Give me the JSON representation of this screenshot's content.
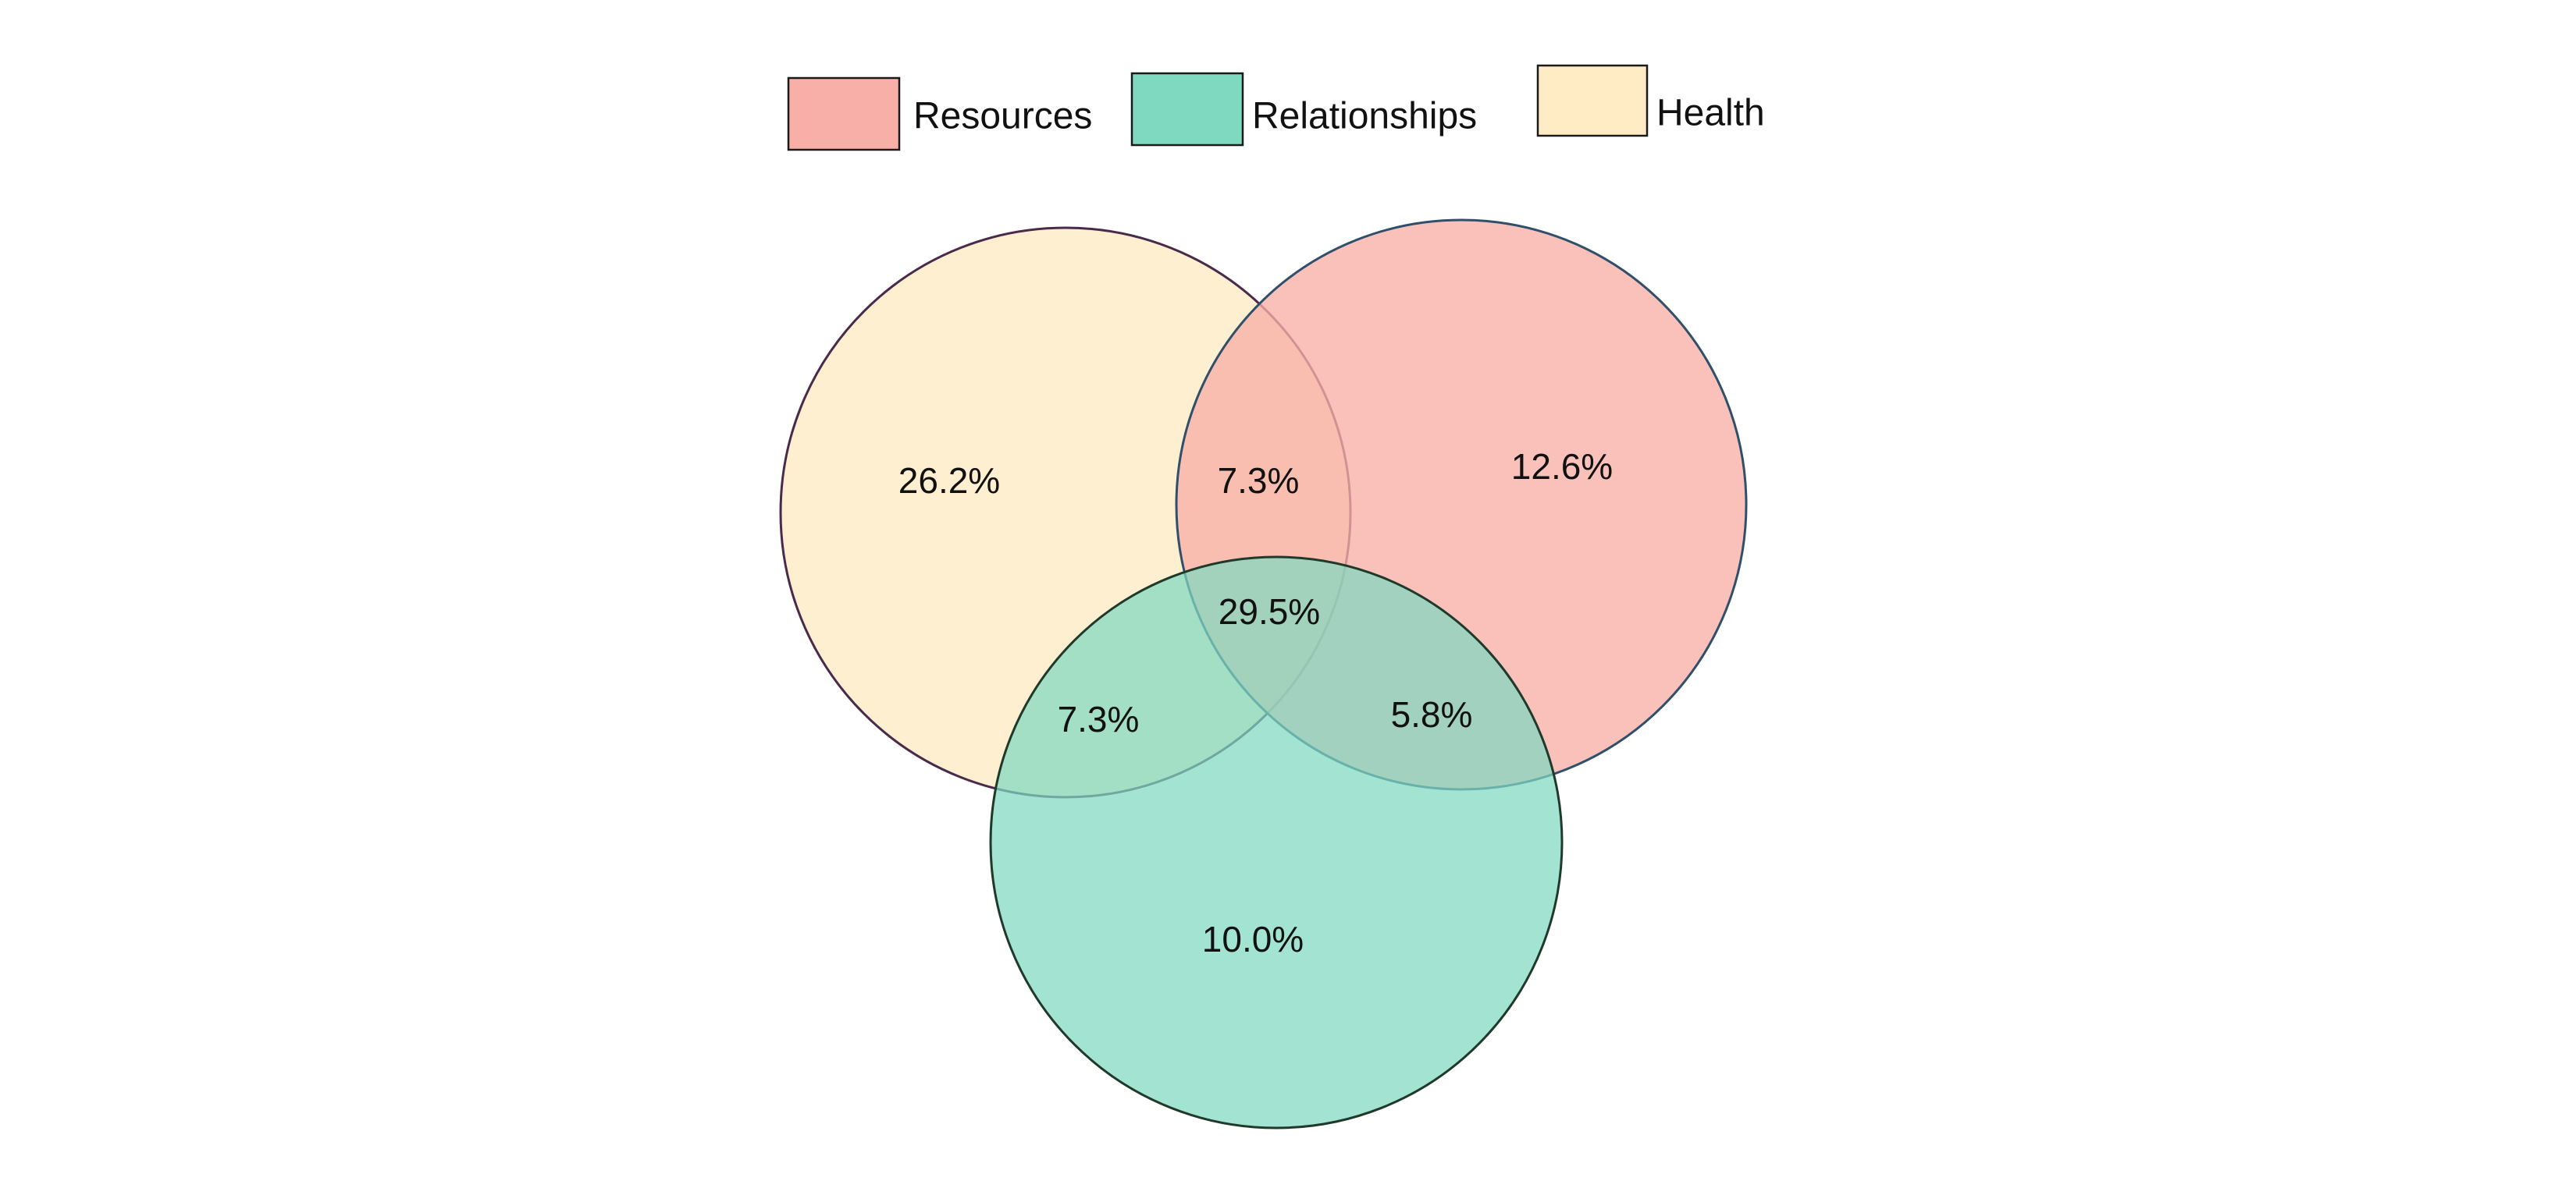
{
  "chart_data": {
    "type": "venn",
    "sets": [
      {
        "key": "resources",
        "name": "Resources",
        "color": "#F8AFA8"
      },
      {
        "key": "relationships",
        "name": "Relationships",
        "color": "#7FD8C0"
      },
      {
        "key": "health",
        "name": "Health",
        "color": "#FFEBC4"
      }
    ],
    "regions": {
      "health_only": "26.2%",
      "resources_only": "12.6%",
      "relationships_only": "10.0%",
      "health_resources": "7.3%",
      "health_relationships": "7.3%",
      "resources_relationships": "5.8%",
      "all_three": "29.5%"
    },
    "region_values": {
      "health_only": 26.2,
      "resources_only": 12.6,
      "relationships_only": 10.0,
      "health_resources": 7.3,
      "health_relationships": 7.3,
      "resources_relationships": 5.8,
      "all_three": 29.5
    },
    "legend_placement": "top-center"
  },
  "colors": {
    "resources_stroke": "#2F4F6B",
    "relationships_stroke": "#1F3A2A",
    "health_stroke": "#4A2A4A"
  }
}
